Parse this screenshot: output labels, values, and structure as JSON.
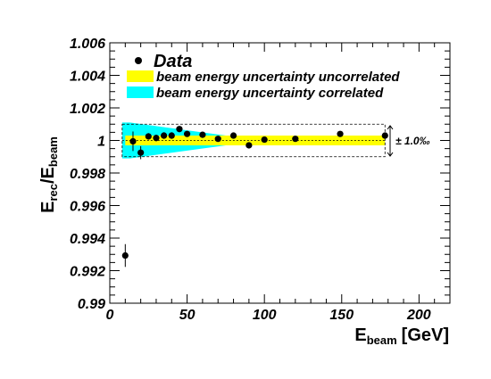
{
  "chart_data": {
    "type": "scatter",
    "ylabel_main": "E",
    "ylabel_sub1": "rec",
    "ylabel_slash": "/E",
    "ylabel_sub2": "beam",
    "xlabel_main": "E",
    "xlabel_sub": "beam",
    "xlabel_unit": "[GeV]",
    "xlim": [
      0,
      220
    ],
    "ylim": [
      0.99,
      1.006
    ],
    "x_ticks": [
      {
        "value": 0,
        "label": "0"
      },
      {
        "value": 50,
        "label": "50"
      },
      {
        "value": 100,
        "label": "100"
      },
      {
        "value": 150,
        "label": "150"
      },
      {
        "value": 200,
        "label": "200"
      }
    ],
    "y_ticks": [
      {
        "value": 0.99,
        "label": "0.99"
      },
      {
        "value": 0.992,
        "label": "0.992"
      },
      {
        "value": 0.994,
        "label": "0.994"
      },
      {
        "value": 0.996,
        "label": "0.996"
      },
      {
        "value": 0.998,
        "label": "0.998"
      },
      {
        "value": 1.0,
        "label": "1"
      },
      {
        "value": 1.002,
        "label": "1.002"
      },
      {
        "value": 1.004,
        "label": "1.004"
      },
      {
        "value": 1.006,
        "label": "1.006"
      }
    ],
    "series": [
      {
        "name": "Data",
        "points": [
          {
            "x": 10,
            "y": 0.99293,
            "err": 0.0007
          },
          {
            "x": 15,
            "y": 0.99995,
            "err": 0.0006
          },
          {
            "x": 20,
            "y": 0.99925,
            "err": 0.0004
          },
          {
            "x": 25,
            "y": 1.00025,
            "err": 0.0002
          },
          {
            "x": 30,
            "y": 1.00015,
            "err": 0.0002
          },
          {
            "x": 35,
            "y": 1.0003,
            "err": 0.0002
          },
          {
            "x": 40,
            "y": 1.0003,
            "err": 0.0002
          },
          {
            "x": 45,
            "y": 1.0007,
            "err": 0.00015
          },
          {
            "x": 50,
            "y": 1.0004,
            "err": 0.00015
          },
          {
            "x": 60,
            "y": 1.00035,
            "err": 0.00012
          },
          {
            "x": 70,
            "y": 1.0001,
            "err": 0.0001
          },
          {
            "x": 80,
            "y": 1.0003,
            "err": 0.0001
          },
          {
            "x": 90,
            "y": 0.9997,
            "err": 0.0001
          },
          {
            "x": 100,
            "y": 1.00005,
            "err": 0.0001
          },
          {
            "x": 120,
            "y": 1.0001,
            "err": 0.0001
          },
          {
            "x": 149,
            "y": 1.0004,
            "err": 0.0001
          },
          {
            "x": 178,
            "y": 1.0003,
            "err": 0.0001
          }
        ]
      }
    ],
    "bands": [
      {
        "name": "beam energy uncertainty uncorrelated",
        "color": "#ffff00",
        "half_width": 0.0003,
        "x_range": [
          10,
          178
        ]
      },
      {
        "name": "beam energy uncertainty correlated",
        "color": "#00ffff",
        "x_range": [
          8,
          75
        ],
        "half_width_start": 0.0011,
        "half_width_end": 0.0003
      }
    ],
    "reference_line": {
      "y": 1.0
    },
    "box": {
      "x_range": [
        8,
        178
      ],
      "y_range": [
        0.999,
        1.001
      ]
    },
    "annotation": "± 1.0‰",
    "legend": {
      "position": "top",
      "entries": [
        "Data",
        "beam energy uncertainty uncorrelated",
        "beam energy uncertainty correlated"
      ]
    },
    "grid": false
  }
}
